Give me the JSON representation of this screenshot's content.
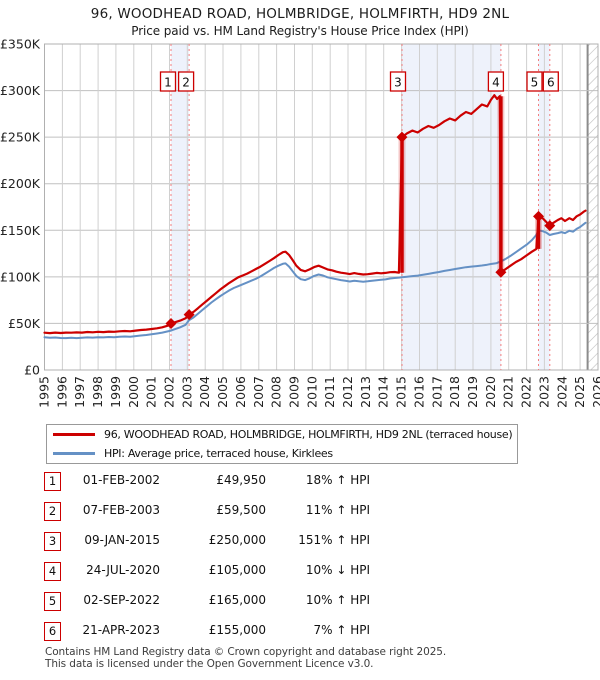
{
  "title": {
    "line1": "96, WOODHEAD ROAD, HOLMBRIDGE, HOLMFIRTH, HD9 2NL",
    "line2": "Price paid vs. HM Land Registry's House Price Index (HPI)"
  },
  "legend": {
    "items": [
      {
        "label": "96, WOODHEAD ROAD, HOLMBRIDGE, HOLMFIRTH, HD9 2NL (terraced house)",
        "color": "#cc0000"
      },
      {
        "label": "HPI: Average price, terraced house, Kirklees",
        "color": "#6591c5"
      }
    ]
  },
  "chart_data": {
    "type": "line",
    "title": "96, WOODHEAD ROAD, HOLMBRIDGE, HOLMFIRTH, HD9 2NL",
    "subtitle": "Price paid vs. HM Land Registry's House Price Index (HPI)",
    "xlabel": "",
    "ylabel": "",
    "x_range": [
      1995,
      2026
    ],
    "y_range_pounds": [
      0,
      350000
    ],
    "grid": true,
    "legend_position": "below",
    "future_start": 2025.42,
    "x_ticks": [
      1995,
      1996,
      1997,
      1998,
      1999,
      2000,
      2001,
      2002,
      2003,
      2004,
      2005,
      2006,
      2007,
      2008,
      2009,
      2010,
      2011,
      2012,
      2013,
      2014,
      2015,
      2016,
      2017,
      2018,
      2019,
      2020,
      2021,
      2022,
      2023,
      2024,
      2025,
      2026
    ],
    "y_ticks": [
      {
        "value": 0,
        "label": "£0"
      },
      {
        "value": 50,
        "label": "£50K"
      },
      {
        "value": 100,
        "label": "£100K"
      },
      {
        "value": 150,
        "label": "£150K"
      },
      {
        "value": 200,
        "label": "£200K"
      },
      {
        "value": 250,
        "label": "£250K"
      },
      {
        "value": 300,
        "label": "£300K"
      },
      {
        "value": 350,
        "label": "£350K"
      }
    ],
    "unit_note": "series values in GBP thousands",
    "colors": {
      "red": "#cc0000",
      "blue": "#6591c5",
      "band": "#eef2fb",
      "grid_v": "#d0d0d0",
      "grid_h": "#c0c0c0",
      "border": "#b0b0b0",
      "dashed": "#f47d7d",
      "hatch": "#bcbcbc",
      "hatch_edge": "#8c8c8c"
    },
    "series": [
      {
        "name": "96, WOODHEAD ROAD, HOLMBRIDGE, HOLMFIRTH, HD9 2NL (terraced house)",
        "color": "#cc0000",
        "width": 2.2,
        "points": [
          [
            1995.0,
            40
          ],
          [
            1995.3,
            39.6
          ],
          [
            1995.6,
            40.1
          ],
          [
            1995.9,
            39.7
          ],
          [
            1996.2,
            40.2
          ],
          [
            1996.5,
            40.0
          ],
          [
            1996.8,
            40.4
          ],
          [
            1997.1,
            40.2
          ],
          [
            1997.4,
            40.8
          ],
          [
            1997.7,
            40.5
          ],
          [
            1998.0,
            41.0
          ],
          [
            1998.3,
            40.7
          ],
          [
            1998.6,
            41.2
          ],
          [
            1998.9,
            41.0
          ],
          [
            1999.2,
            41.5
          ],
          [
            1999.5,
            41.9
          ],
          [
            1999.8,
            41.6
          ],
          [
            2000.1,
            42.3
          ],
          [
            2000.4,
            42.9
          ],
          [
            2000.7,
            43.4
          ],
          [
            2001.0,
            44.0
          ],
          [
            2001.3,
            44.8
          ],
          [
            2001.6,
            45.8
          ],
          [
            2001.9,
            47.6
          ],
          [
            2002.085,
            49.95
          ],
          [
            2002.3,
            51.2
          ],
          [
            2002.6,
            53.0
          ],
          [
            2002.9,
            55.5
          ],
          [
            2003.1,
            59.5
          ],
          [
            2003.35,
            62.5
          ],
          [
            2003.6,
            66.5
          ],
          [
            2003.85,
            70.5
          ],
          [
            2004.1,
            74.5
          ],
          [
            2004.35,
            78.5
          ],
          [
            2004.6,
            82.5
          ],
          [
            2004.85,
            86.5
          ],
          [
            2005.1,
            90.0
          ],
          [
            2005.35,
            93.5
          ],
          [
            2005.6,
            96.5
          ],
          [
            2005.85,
            99.5
          ],
          [
            2006.1,
            101.5
          ],
          [
            2006.35,
            103.5
          ],
          [
            2006.6,
            106.0
          ],
          [
            2006.85,
            108.5
          ],
          [
            2007.1,
            111.0
          ],
          [
            2007.35,
            114.0
          ],
          [
            2007.6,
            117.0
          ],
          [
            2007.85,
            120.0
          ],
          [
            2008.1,
            123.5
          ],
          [
            2008.35,
            126.5
          ],
          [
            2008.5,
            127.0
          ],
          [
            2008.7,
            123.5
          ],
          [
            2008.9,
            118.0
          ],
          [
            2009.1,
            112.0
          ],
          [
            2009.35,
            107.5
          ],
          [
            2009.6,
            106.0
          ],
          [
            2009.85,
            108.0
          ],
          [
            2010.1,
            110.5
          ],
          [
            2010.35,
            112.0
          ],
          [
            2010.6,
            110.0
          ],
          [
            2010.85,
            108.0
          ],
          [
            2011.1,
            107.0
          ],
          [
            2011.35,
            105.5
          ],
          [
            2011.6,
            104.5
          ],
          [
            2011.85,
            103.8
          ],
          [
            2012.1,
            103.0
          ],
          [
            2012.35,
            104.0
          ],
          [
            2012.6,
            103.2
          ],
          [
            2012.85,
            102.5
          ],
          [
            2013.1,
            102.8
          ],
          [
            2013.35,
            103.5
          ],
          [
            2013.6,
            104.2
          ],
          [
            2013.85,
            103.8
          ],
          [
            2014.1,
            104.2
          ],
          [
            2014.35,
            105.0
          ],
          [
            2014.6,
            105.2
          ],
          [
            2014.85,
            104.5
          ],
          [
            2015.02,
            250
          ],
          [
            2015.3,
            254
          ],
          [
            2015.6,
            257
          ],
          [
            2015.9,
            255
          ],
          [
            2016.2,
            259
          ],
          [
            2016.5,
            262
          ],
          [
            2016.8,
            260
          ],
          [
            2017.1,
            263
          ],
          [
            2017.4,
            267
          ],
          [
            2017.7,
            270
          ],
          [
            2018.0,
            268
          ],
          [
            2018.3,
            273
          ],
          [
            2018.6,
            277
          ],
          [
            2018.9,
            275
          ],
          [
            2019.2,
            280
          ],
          [
            2019.5,
            285
          ],
          [
            2019.8,
            283
          ],
          [
            2020.0,
            290
          ],
          [
            2020.2,
            295
          ],
          [
            2020.35,
            291
          ],
          [
            2020.5,
            294
          ],
          [
            2020.56,
            105
          ],
          [
            2020.8,
            108
          ],
          [
            2021.1,
            112
          ],
          [
            2021.4,
            116
          ],
          [
            2021.7,
            119
          ],
          [
            2022.0,
            123
          ],
          [
            2022.3,
            127
          ],
          [
            2022.55,
            130
          ],
          [
            2022.67,
            165
          ],
          [
            2022.9,
            163
          ],
          [
            2023.1,
            159
          ],
          [
            2023.3,
            155
          ],
          [
            2023.5,
            158
          ],
          [
            2023.75,
            161
          ],
          [
            2023.95,
            163
          ],
          [
            2024.15,
            160
          ],
          [
            2024.4,
            163
          ],
          [
            2024.6,
            161
          ],
          [
            2024.8,
            165
          ],
          [
            2025.0,
            167
          ],
          [
            2025.2,
            170
          ],
          [
            2025.3,
            171
          ]
        ]
      },
      {
        "name": "HPI: Average price, terraced house, Kirklees",
        "color": "#6591c5",
        "width": 2,
        "points": [
          [
            1995.0,
            35.2
          ],
          [
            1995.3,
            34.6
          ],
          [
            1995.6,
            34.9
          ],
          [
            1995.9,
            34.4
          ],
          [
            1996.2,
            34.2
          ],
          [
            1996.5,
            34.6
          ],
          [
            1996.8,
            34.3
          ],
          [
            1997.1,
            34.6
          ],
          [
            1997.4,
            35.0
          ],
          [
            1997.7,
            34.8
          ],
          [
            1998.0,
            35.2
          ],
          [
            1998.3,
            35.0
          ],
          [
            1998.6,
            35.4
          ],
          [
            1998.9,
            35.2
          ],
          [
            1999.2,
            35.6
          ],
          [
            1999.5,
            36.0
          ],
          [
            1999.8,
            35.8
          ],
          [
            2000.1,
            36.4
          ],
          [
            2000.4,
            37.0
          ],
          [
            2000.7,
            37.6
          ],
          [
            2001.0,
            38.3
          ],
          [
            2001.3,
            39.2
          ],
          [
            2001.6,
            40.2
          ],
          [
            2001.9,
            41.4
          ],
          [
            2002.085,
            42.3
          ],
          [
            2002.3,
            43.8
          ],
          [
            2002.6,
            45.8
          ],
          [
            2002.9,
            48.5
          ],
          [
            2003.1,
            53.6
          ],
          [
            2003.35,
            56.5
          ],
          [
            2003.6,
            60.5
          ],
          [
            2003.85,
            64.5
          ],
          [
            2004.1,
            68.5
          ],
          [
            2004.35,
            72.5
          ],
          [
            2004.6,
            76.0
          ],
          [
            2004.85,
            79.5
          ],
          [
            2005.1,
            82.5
          ],
          [
            2005.35,
            85.5
          ],
          [
            2005.6,
            88.0
          ],
          [
            2005.85,
            90.0
          ],
          [
            2006.1,
            92.0
          ],
          [
            2006.35,
            94.0
          ],
          [
            2006.6,
            96.0
          ],
          [
            2006.85,
            98.0
          ],
          [
            2007.1,
            100.5
          ],
          [
            2007.35,
            103.5
          ],
          [
            2007.6,
            106.5
          ],
          [
            2007.85,
            109.5
          ],
          [
            2008.1,
            112.0
          ],
          [
            2008.35,
            114.0
          ],
          [
            2008.5,
            114.5
          ],
          [
            2008.7,
            111.0
          ],
          [
            2008.9,
            106.0
          ],
          [
            2009.1,
            101.0
          ],
          [
            2009.35,
            97.5
          ],
          [
            2009.6,
            96.5
          ],
          [
            2009.85,
            98.5
          ],
          [
            2010.1,
            101.0
          ],
          [
            2010.35,
            102.5
          ],
          [
            2010.6,
            101.5
          ],
          [
            2010.85,
            99.5
          ],
          [
            2011.1,
            98.5
          ],
          [
            2011.35,
            97.5
          ],
          [
            2011.6,
            96.5
          ],
          [
            2011.85,
            95.8
          ],
          [
            2012.1,
            95.0
          ],
          [
            2012.35,
            95.8
          ],
          [
            2012.6,
            95.2
          ],
          [
            2012.85,
            94.8
          ],
          [
            2013.1,
            95.2
          ],
          [
            2013.35,
            95.8
          ],
          [
            2013.6,
            96.3
          ],
          [
            2013.85,
            96.8
          ],
          [
            2014.1,
            97.3
          ],
          [
            2014.35,
            98.2
          ],
          [
            2014.6,
            98.8
          ],
          [
            2014.85,
            99.2
          ],
          [
            2015.02,
            99.6
          ],
          [
            2015.3,
            100.2
          ],
          [
            2015.6,
            100.8
          ],
          [
            2015.9,
            101.4
          ],
          [
            2016.2,
            102.2
          ],
          [
            2016.5,
            103.2
          ],
          [
            2016.8,
            104.2
          ],
          [
            2017.1,
            105.2
          ],
          [
            2017.4,
            106.4
          ],
          [
            2017.7,
            107.4
          ],
          [
            2018.0,
            108.4
          ],
          [
            2018.3,
            109.4
          ],
          [
            2018.6,
            110.4
          ],
          [
            2018.9,
            111.0
          ],
          [
            2019.2,
            111.6
          ],
          [
            2019.5,
            112.2
          ],
          [
            2019.8,
            113.0
          ],
          [
            2020.0,
            113.8
          ],
          [
            2020.3,
            114.6
          ],
          [
            2020.56,
            116.7
          ],
          [
            2020.8,
            119.0
          ],
          [
            2021.1,
            122.5
          ],
          [
            2021.4,
            126.5
          ],
          [
            2021.7,
            130.5
          ],
          [
            2022.0,
            134.5
          ],
          [
            2022.3,
            139.5
          ],
          [
            2022.55,
            145.0
          ],
          [
            2022.67,
            150.0
          ],
          [
            2022.9,
            149.0
          ],
          [
            2023.1,
            147.5
          ],
          [
            2023.3,
            144.9
          ],
          [
            2023.5,
            146.0
          ],
          [
            2023.75,
            147.0
          ],
          [
            2023.95,
            148.0
          ],
          [
            2024.15,
            147.0
          ],
          [
            2024.4,
            149.5
          ],
          [
            2024.6,
            148.5
          ],
          [
            2024.8,
            151.5
          ],
          [
            2025.0,
            153.5
          ],
          [
            2025.2,
            156.5
          ],
          [
            2025.3,
            158.0
          ]
        ]
      }
    ],
    "sales": [
      {
        "label": "1",
        "x": 2002.085,
        "price": 49950,
        "dx": -3
      },
      {
        "label": "2",
        "x": 2003.1,
        "price": 59500,
        "dx": -3
      },
      {
        "label": "3",
        "x": 2015.02,
        "price": 250000,
        "dx": -4
      },
      {
        "label": "4",
        "x": 2020.56,
        "price": 105000,
        "dx": -5
      },
      {
        "label": "5",
        "x": 2022.67,
        "price": 165000,
        "dx": -4
      },
      {
        "label": "6",
        "x": 2023.3,
        "price": 155000,
        "dx": 1
      }
    ],
    "jumps": [
      {
        "x": 2015.02,
        "from": 104.5,
        "to": 250
      },
      {
        "x": 2020.56,
        "from": 294,
        "to": 105
      },
      {
        "x": 2022.67,
        "from": 130,
        "to": 165
      }
    ]
  },
  "table": {
    "rows": [
      {
        "num": "1",
        "date": "01-FEB-2002",
        "price": "£49,950",
        "delta": "18% ↑ HPI"
      },
      {
        "num": "2",
        "date": "07-FEB-2003",
        "price": "£59,500",
        "delta": "11% ↑ HPI"
      },
      {
        "num": "3",
        "date": "09-JAN-2015",
        "price": "£250,000",
        "delta": "151% ↑ HPI"
      },
      {
        "num": "4",
        "date": "24-JUL-2020",
        "price": "£105,000",
        "delta": "10% ↓ HPI"
      },
      {
        "num": "5",
        "date": "02-SEP-2022",
        "price": "£165,000",
        "delta": "10% ↑ HPI"
      },
      {
        "num": "6",
        "date": "21-APR-2023",
        "price": "£155,000",
        "delta": "7% ↑ HPI"
      }
    ]
  },
  "footer": {
    "line1": "Contains HM Land Registry data © Crown copyright and database right 2025.",
    "line2": "This data is licensed under the Open Government Licence v3.0."
  }
}
